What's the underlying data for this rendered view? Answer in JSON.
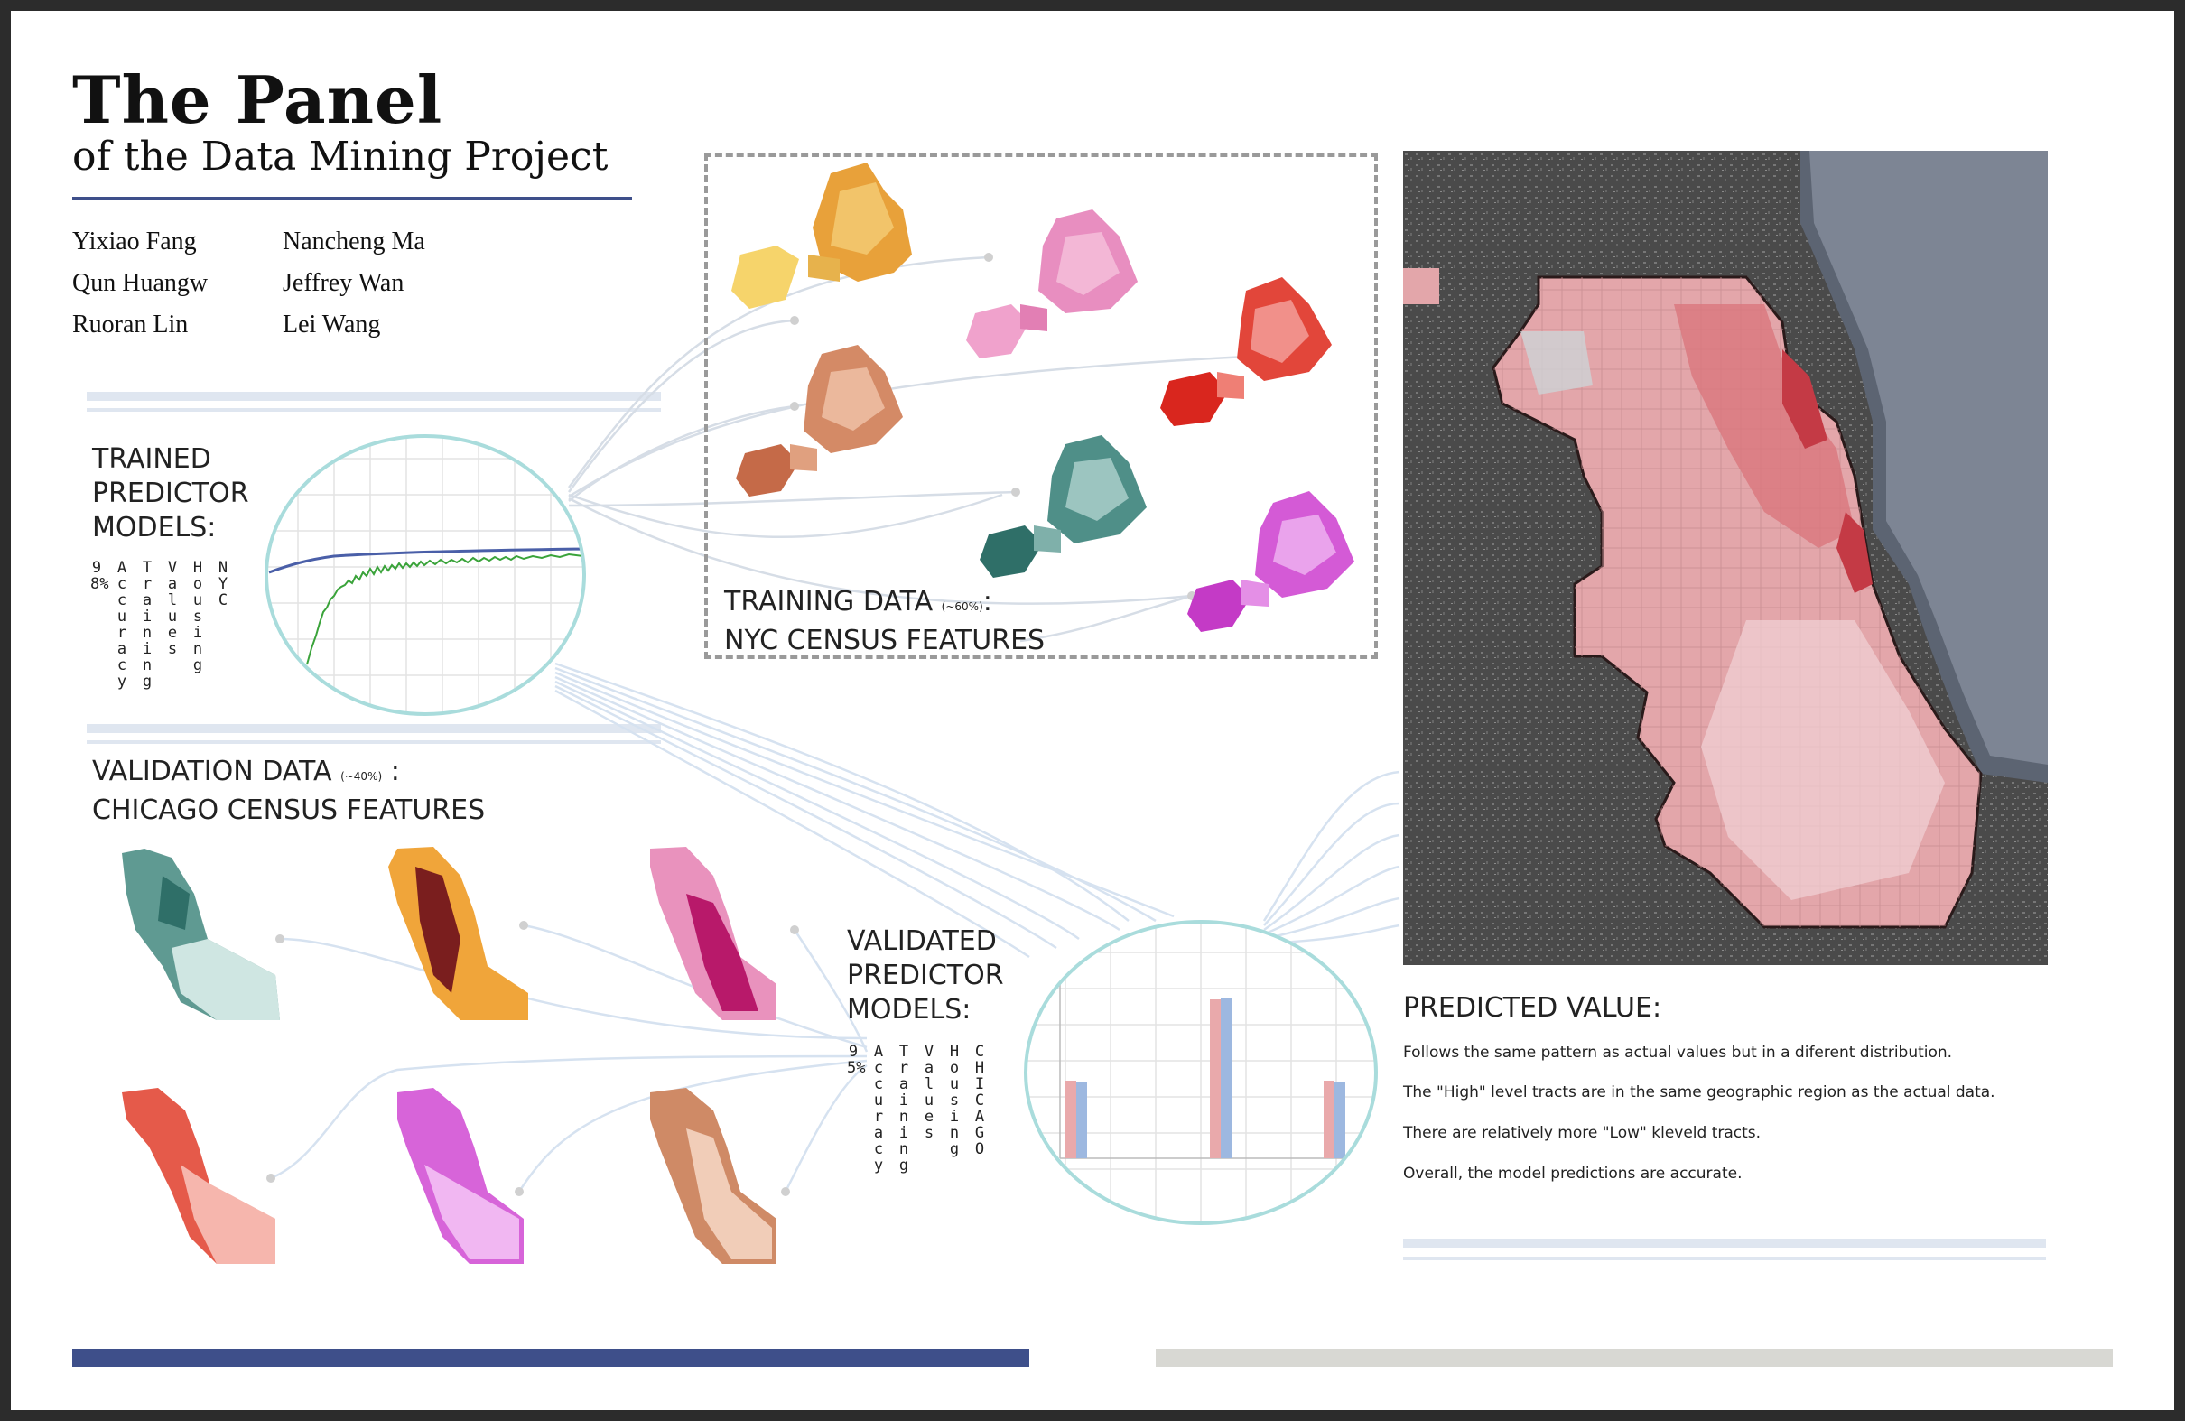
{
  "header": {
    "title": "The Panel",
    "subtitle": "of the Data Mining Project"
  },
  "authors": {
    "col1": [
      "Yixiao Fang",
      "Qun Huangw",
      "Ruoran Lin"
    ],
    "col2": [
      "Nancheng Ma",
      "Jeffrey Wan",
      "Lei Wang"
    ]
  },
  "trained": {
    "heading_lines": [
      "TRAINED",
      "PREDICTOR",
      "MODELS:"
    ],
    "columns": [
      "98%",
      "Accuracy",
      "Training",
      "Values",
      "Housing",
      "NYC"
    ]
  },
  "training_data": {
    "line1": "TRAINING DATA",
    "line1_small": "(~60%)",
    "line1_end": ":",
    "line2": "NYC CENSUS FEATURES"
  },
  "validation_data": {
    "line1": "VALIDATION DATA",
    "line1_small": "(~40%)",
    "line1_end": " :",
    "line2": "CHICAGO CENSUS FEATURES"
  },
  "validated": {
    "heading_lines": [
      "VALIDATED",
      "PREDICTOR",
      "MODELS:"
    ],
    "columns": [
      "95%",
      "Accuracy",
      "Training",
      "Values",
      "Housing",
      "CHICAGO"
    ]
  },
  "predicted": {
    "heading": "PREDICTED VALUE:",
    "points": [
      "Follows the same pattern as actual values but in a diferent distribution.",
      "The \"High\" level tracts are in the same geographic region as the actual data.",
      "There are relatively more \"Low\" kleveld tracts.",
      "Overall, the model predictions are accurate."
    ]
  },
  "colors": {
    "accent": "#3e4f8a",
    "band": "#dfe6f0",
    "circle": "#a9dcdc",
    "pink_region": "#e9a9ab",
    "blue_line": "#4a5fa8",
    "green_line": "#3aa33a"
  }
}
